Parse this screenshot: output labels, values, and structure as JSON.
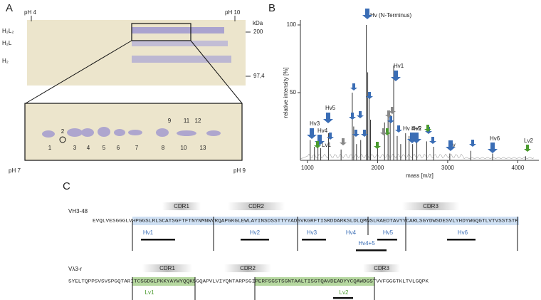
{
  "panel_a": {
    "label": "A",
    "ph_top_left": "pH 4",
    "ph_top_right": "pH 10",
    "unit": "kDa",
    "markers": [
      "200",
      "97,4"
    ],
    "bands": [
      "H₂L₂",
      "H₂L",
      "H₂"
    ],
    "spots": [
      "1",
      "2",
      "3",
      "4",
      "5",
      "6",
      "7",
      "8",
      "9",
      "10",
      "11",
      "12",
      "13"
    ],
    "ph_bottom_left": "pH 7",
    "ph_bottom_right": "pH 9"
  },
  "chart_data": {
    "type": "spectrum",
    "label": "B",
    "xlabel": "mass [m/z]",
    "ylabel": "relative intensity [%]",
    "x": [
      1040,
      1100,
      1150,
      1190,
      1300,
      1480,
      1640,
      1660,
      1700,
      1760,
      1840,
      1860,
      1880,
      1900,
      2000,
      2100,
      2150,
      2180,
      2230,
      2280,
      2330,
      2400,
      2450,
      2500,
      2560,
      2700,
      2800,
      3030,
      3330,
      3640,
      4110
    ],
    "values": [
      15,
      10,
      13,
      9,
      20,
      8,
      50,
      25,
      12,
      15,
      100,
      65,
      50,
      30,
      10,
      28,
      35,
      30,
      70,
      18,
      12,
      20,
      18,
      12,
      14,
      14,
      10,
      5,
      7,
      5,
      3
    ],
    "color": "#333333",
    "xlim": [
      900,
      4300
    ],
    "ylim": [
      0,
      100
    ],
    "xticks": [
      1000,
      2000,
      3000,
      4000
    ],
    "yticks": [
      50,
      100
    ],
    "annotations": [
      {
        "text": "Hv (N-Terminus)",
        "color": "#3a6db5"
      },
      {
        "text": "Hv1",
        "color": "#3a6db5"
      },
      {
        "text": "Hv5",
        "color": "#3a6db5"
      },
      {
        "text": "Hv3",
        "color": "#3a6db5"
      },
      {
        "text": "Hv4",
        "color": "#3a6db5"
      },
      {
        "text": "Lv1",
        "color": "#4a9a2e"
      },
      {
        "text": "Hv 4+5",
        "color": "#3a6db5"
      },
      {
        "text": "Hv2",
        "color": "#3a6db5"
      },
      {
        "text": "Hv",
        "color": "#3a6db5"
      },
      {
        "text": "Hv6",
        "color": "#3a6db5"
      },
      {
        "text": "Lv2",
        "color": "#4a9a2e"
      }
    ]
  },
  "panel_c": {
    "label": "C",
    "heavy": {
      "name": "VH3-48",
      "sequence": "EVQLVESGGGLVHPGGSLRLSCATSGFTFTNYNMNWVRQAPGKGLEWLAYINSDSSTTYYADSVKGRFTISRDDARKSLDLQMNSLRAEDTAVYYCARLSGYDWSDESVLYHDYWGQGTLVTVSSTSTK",
      "cdrs": [
        "CDR1",
        "CDR2",
        "CDR3"
      ],
      "peptides": [
        "Hv1",
        "Hv2",
        "Hv3",
        "Hv4",
        "Hv5",
        "Hv6",
        "Hv4+5"
      ]
    },
    "light": {
      "name": "Vλ3-r",
      "sequence": "SYELTQPPSVSVSPGQTARITCSGDGLPKKYAYWYQQKSGQAPVLVIYQNTARPSGIPERFSGSTSGNTAALTISGTQAVDEADYYCQAWDGSTVVFGGGTKLTVLGQPK",
      "cdrs": [
        "CDR1",
        "CDR2",
        "CDR3"
      ],
      "peptides": [
        "Lv1",
        "Lv2"
      ]
    }
  }
}
